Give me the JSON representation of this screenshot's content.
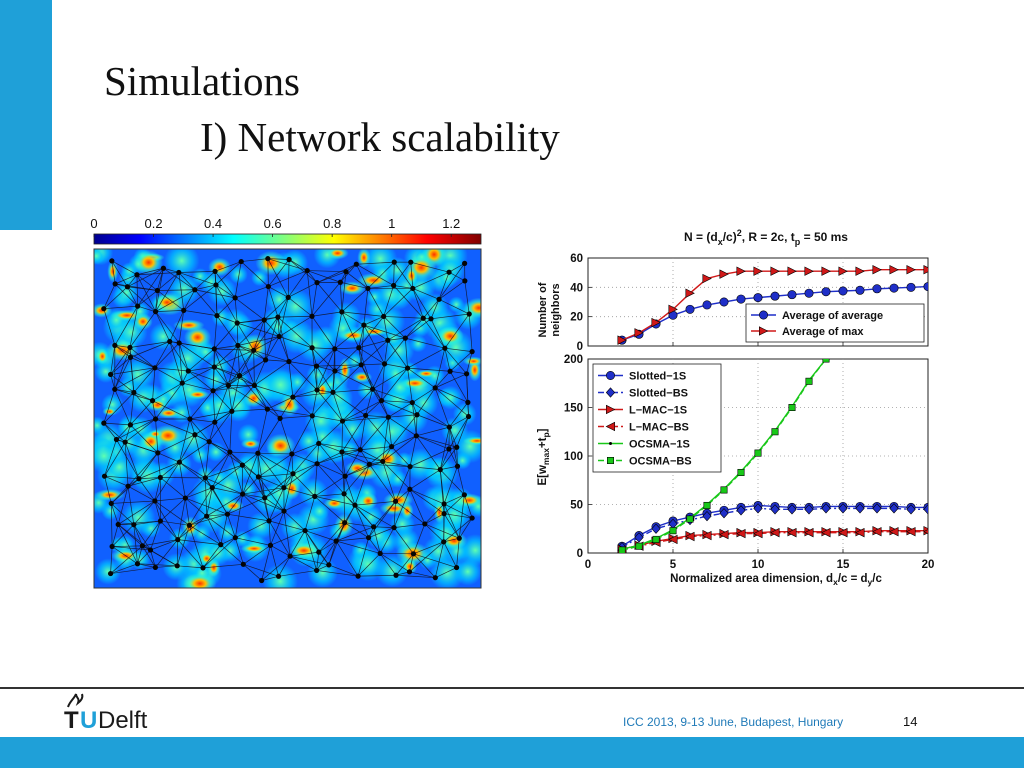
{
  "slide": {
    "title_line1": "Simulations",
    "title_line2": "I) Network scalability",
    "footer": "ICC 2013, 9-13 June, Budapest, Hungary",
    "page_number": "14",
    "logo_T": "T",
    "logo_U": "U",
    "logo_rest": "Delft"
  },
  "colors": {
    "accent": "#1fa0d8",
    "blue_series": "#1f2fc8",
    "red_series": "#d01818",
    "green_series": "#18c818"
  },
  "chart_data": [
    {
      "type": "heatmap",
      "description_colorbar": true,
      "colorbar_ticks": [
        "0",
        "0.2",
        "0.4",
        "0.6",
        "0.8",
        "1",
        "1.2"
      ],
      "colorbar_range": [
        0,
        1.3
      ]
    },
    {
      "type": "line",
      "title": "N = (d_x/c)^2, R = 2c, t_p = 50 ms",
      "ylabel": "Number of neighbors",
      "ylim": [
        0,
        60
      ],
      "xlim": [
        0,
        20
      ],
      "yticks": [
        "0",
        "20",
        "40",
        "60"
      ],
      "grid": true,
      "legend": "bottom-right",
      "series": [
        {
          "name": "Average of average",
          "color": "#1f2fc8",
          "marker": "circle",
          "x": [
            2,
            3,
            4,
            5,
            6,
            7,
            8,
            9,
            10,
            11,
            12,
            13,
            14,
            15,
            16,
            17,
            18,
            19,
            20
          ],
          "values": [
            4,
            8,
            15,
            21,
            25,
            28,
            30,
            32,
            33,
            34,
            35,
            36,
            37,
            37.5,
            38,
            39,
            39.5,
            40,
            40.5
          ]
        },
        {
          "name": "Average of max",
          "color": "#d01818",
          "marker": "triangle-right",
          "x": [
            2,
            3,
            4,
            5,
            6,
            7,
            8,
            9,
            10,
            11,
            12,
            13,
            14,
            15,
            16,
            17,
            18,
            19,
            20
          ],
          "values": [
            4,
            9,
            16,
            25,
            36,
            46,
            49,
            51,
            51,
            51,
            51,
            51,
            51,
            51,
            51,
            52,
            52,
            52,
            52
          ]
        }
      ]
    },
    {
      "type": "line",
      "xlabel": "Normalized area dimension, d_x/c = d_y/c",
      "ylabel": "E[w_max+t_p]",
      "xlim": [
        0,
        20
      ],
      "ylim": [
        0,
        200
      ],
      "xticks": [
        "0",
        "5",
        "10",
        "15",
        "20"
      ],
      "yticks": [
        "0",
        "50",
        "100",
        "150",
        "200"
      ],
      "grid": true,
      "legend": "top-left",
      "series": [
        {
          "name": "Slotted−1S",
          "color": "#1f2fc8",
          "marker": "circle",
          "dash": "",
          "x": [
            2,
            3,
            4,
            5,
            6,
            7,
            8,
            9,
            10,
            11,
            12,
            13,
            14,
            15,
            16,
            17,
            18,
            19,
            20
          ],
          "values": [
            7,
            18,
            27,
            33,
            37,
            41,
            44,
            47,
            49,
            48,
            47,
            47,
            48,
            48,
            48,
            48,
            48,
            47,
            47
          ]
        },
        {
          "name": "Slotted−BS",
          "color": "#1f2fc8",
          "marker": "diamond",
          "dash": "6 3 2 3",
          "x": [
            2,
            3,
            4,
            5,
            6,
            7,
            8,
            9,
            10,
            11,
            12,
            13,
            14,
            15,
            16,
            17,
            18,
            19,
            20
          ],
          "values": [
            6,
            16,
            25,
            30,
            34,
            38,
            41,
            44,
            46,
            45,
            45,
            45,
            46,
            46,
            46,
            46,
            46,
            45,
            45
          ]
        },
        {
          "name": "L−MAC−1S",
          "color": "#d01818",
          "marker": "triangle-right",
          "dash": "",
          "x": [
            2,
            3,
            4,
            5,
            6,
            7,
            8,
            9,
            10,
            11,
            12,
            13,
            14,
            15,
            16,
            17,
            18,
            19,
            20
          ],
          "values": [
            4,
            8,
            12,
            15,
            18,
            19,
            20,
            21,
            21,
            22,
            22,
            22,
            22,
            22,
            22,
            23,
            23,
            23,
            23
          ]
        },
        {
          "name": "L−MAC−BS",
          "color": "#d01818",
          "marker": "triangle-left",
          "dash": "6 3 2 3",
          "x": [
            2,
            3,
            4,
            5,
            6,
            7,
            8,
            9,
            10,
            11,
            12,
            13,
            14,
            15,
            16,
            17,
            18,
            19,
            20
          ],
          "values": [
            3,
            7,
            11,
            14,
            17,
            18,
            19,
            20,
            20,
            21,
            21,
            21,
            21,
            21,
            21,
            22,
            22,
            22,
            22
          ]
        },
        {
          "name": "OCSMA−1S",
          "color": "#18c818",
          "marker": "dot",
          "dash": "",
          "x": [
            2,
            3,
            4,
            5,
            6,
            7,
            8,
            9,
            10,
            11,
            12,
            13,
            14
          ],
          "values": [
            4,
            8,
            15,
            24,
            36,
            50,
            66,
            84,
            104,
            126,
            151,
            178,
            200
          ]
        },
        {
          "name": "OCSMA−BS",
          "color": "#18c818",
          "marker": "square",
          "dash": "6 3",
          "x": [
            2,
            3,
            4,
            5,
            6,
            7,
            8,
            9,
            10,
            11,
            12,
            13,
            14
          ],
          "values": [
            3,
            7,
            14,
            23,
            35,
            49,
            65,
            83,
            103,
            125,
            150,
            177,
            200
          ]
        }
      ]
    }
  ]
}
